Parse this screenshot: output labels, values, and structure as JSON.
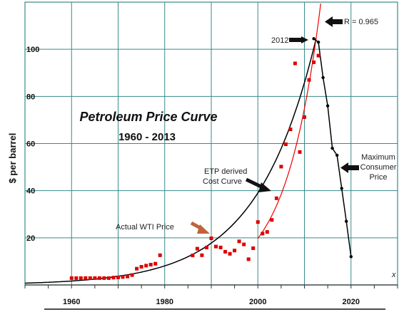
{
  "chart_data": {
    "type": "scatter",
    "title": "Petroleum Price Curve",
    "subtitle": "1960 - 2013",
    "ylabel": "$ per barrel",
    "xlabel": "x",
    "xlim": [
      1950,
      2030
    ],
    "ylim": [
      0,
      120
    ],
    "xticks": [
      1960,
      1980,
      2000,
      2020
    ],
    "yticks": [
      20,
      40,
      60,
      80,
      100
    ],
    "grid": true,
    "colors": {
      "actual": "#dd0000",
      "model": "#000000",
      "fit": "#ee0000",
      "gridline": "#3a8a8a",
      "arrow_dark": "#111111",
      "arrow_highlight": "#c0633a"
    },
    "series": [
      {
        "name": "Actual WTI Price",
        "marker": "square",
        "x": [
          1960,
          1961,
          1962,
          1963,
          1964,
          1965,
          1966,
          1967,
          1968,
          1969,
          1970,
          1971,
          1972,
          1973,
          1974,
          1975,
          1976,
          1977,
          1978,
          1979,
          1986,
          1987,
          1988,
          1989,
          1990,
          1991,
          1992,
          1993,
          1994,
          1995,
          1996,
          1997,
          1998,
          1999,
          2000,
          2001,
          2002,
          2003,
          2004,
          2005,
          2006,
          2007,
          2008,
          2009,
          2010,
          2011,
          2012,
          2013
        ],
        "y": [
          2.9,
          2.9,
          2.9,
          2.9,
          2.9,
          2.9,
          2.9,
          2.9,
          2.9,
          3.1,
          3.2,
          3.4,
          3.6,
          4.2,
          6.9,
          7.7,
          8.2,
          8.6,
          9.0,
          12.6,
          12.5,
          15.4,
          12.6,
          15.9,
          19.8,
          16.3,
          15.9,
          14.1,
          13.2,
          14.6,
          18.5,
          17.2,
          10.9,
          15.6,
          26.7,
          21.8,
          22.5,
          27.6,
          36.8,
          50.2,
          59.7,
          66.0,
          94.0,
          56.4,
          71.2,
          87.0,
          94.5,
          97.3
        ]
      },
      {
        "name": "Cost Curve",
        "marker": "dot",
        "x": [
          2012,
          2013,
          2014,
          2015,
          2016,
          2017,
          2018,
          2019,
          2020
        ],
        "y": [
          104.5,
          103.0,
          88.0,
          76.0,
          58.0,
          55.0,
          41.0,
          27.0,
          12.0
        ]
      }
    ],
    "annotations": [
      {
        "text": "2012",
        "x": 2012,
        "y": 104.5
      },
      {
        "text": "R = 0.965"
      },
      {
        "text": "ETP derived"
      },
      {
        "text": "Cost Curve"
      },
      {
        "text": "Actual WTI Price"
      },
      {
        "text": "Maximum"
      },
      {
        "text": "Consumer"
      },
      {
        "text": "Price"
      }
    ]
  }
}
